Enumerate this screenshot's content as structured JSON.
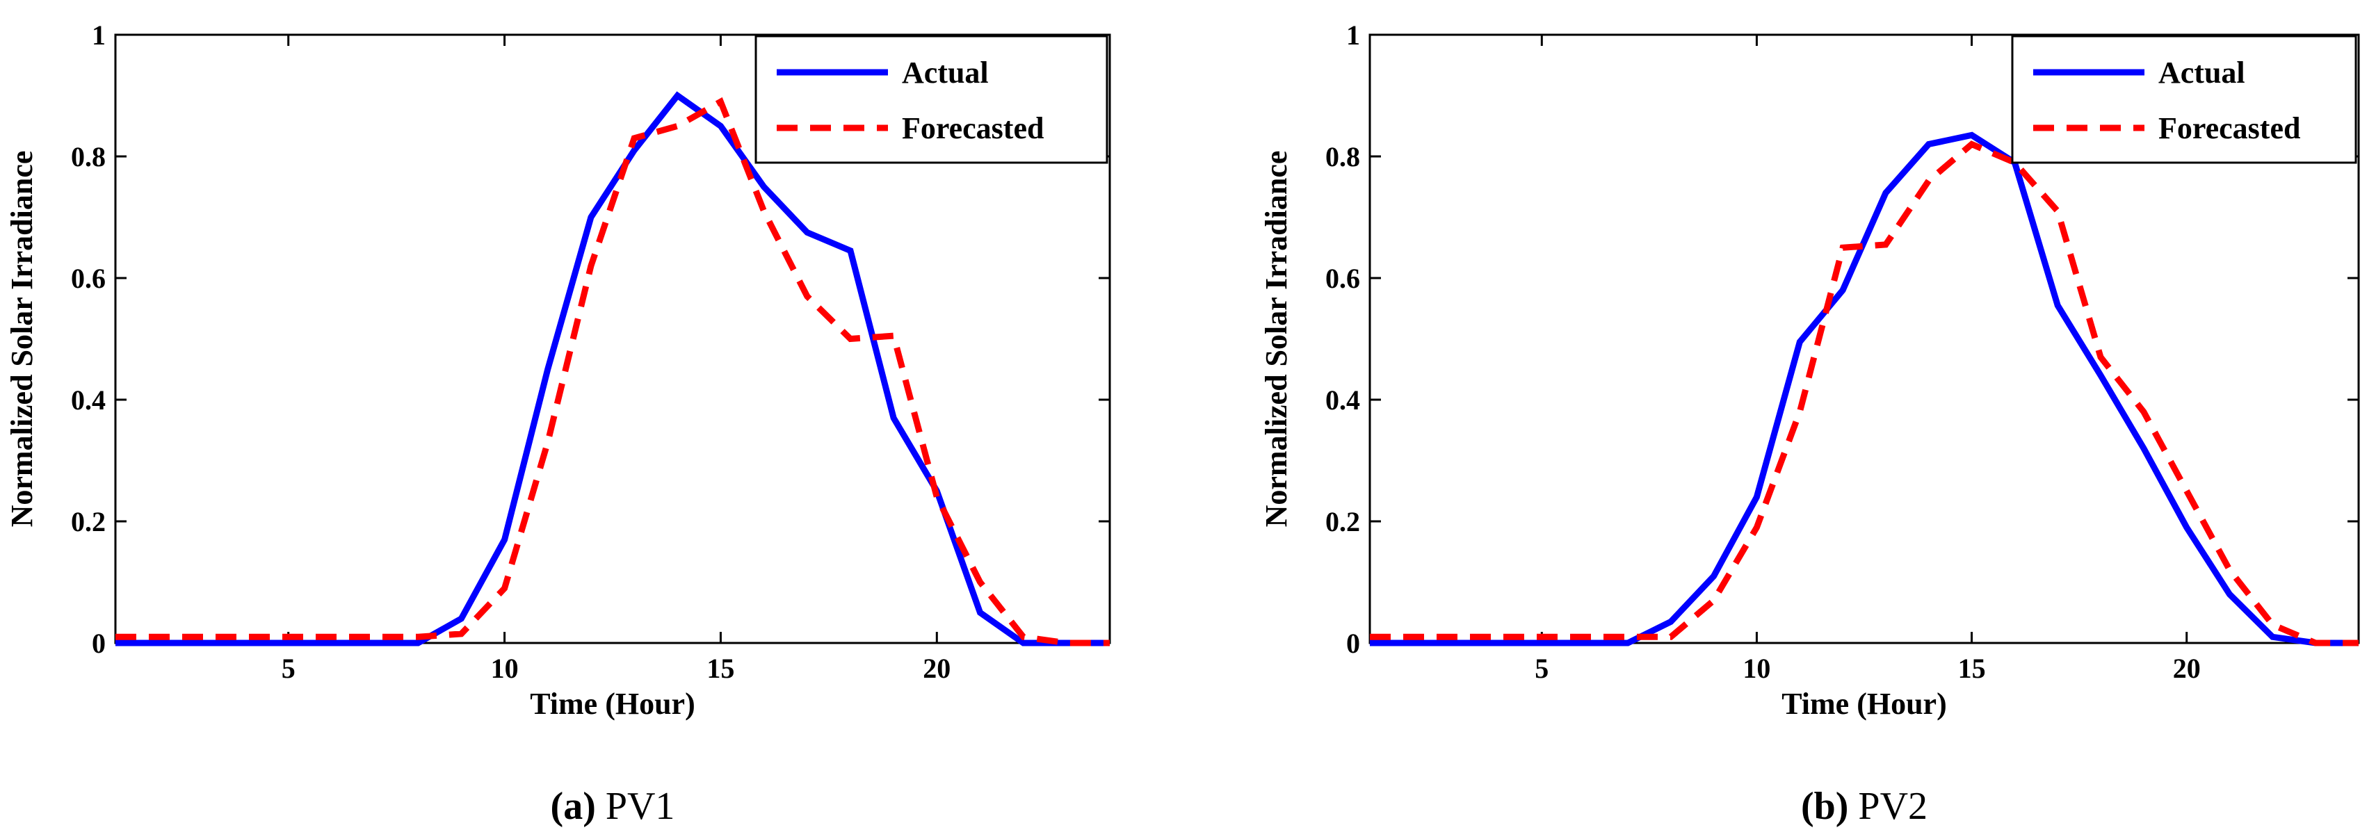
{
  "chart_data": [
    {
      "type": "line",
      "title": "",
      "caption_tag": "(a)",
      "caption_text": "PV1",
      "xlabel": "Time (Hour)",
      "ylabel": "Normalized Solar Irradiance",
      "xlim": [
        1,
        24
      ],
      "ylim": [
        0,
        1
      ],
      "xticks": [
        5,
        10,
        15,
        20
      ],
      "yticks": [
        0,
        0.2,
        0.4,
        0.6,
        0.8,
        1
      ],
      "ytick_labels": [
        "0",
        "0.2",
        "0.4",
        "0.6",
        "0.8",
        "1"
      ],
      "legend_position": "top-right",
      "x": [
        1,
        2,
        3,
        4,
        5,
        6,
        7,
        8,
        9,
        10,
        11,
        12,
        13,
        14,
        15,
        16,
        17,
        18,
        19,
        20,
        21,
        22,
        23,
        24
      ],
      "series": [
        {
          "name": "Actual",
          "color": "#0000ff",
          "style": "solid",
          "values": [
            0,
            0,
            0,
            0,
            0,
            0,
            0,
            0,
            0.04,
            0.17,
            0.45,
            0.7,
            0.81,
            0.9,
            0.85,
            0.75,
            0.675,
            0.645,
            0.37,
            0.25,
            0.05,
            0,
            0,
            0
          ]
        },
        {
          "name": "Forecasted",
          "color": "#ff0000",
          "style": "dashed",
          "values": [
            0.01,
            0.01,
            0.01,
            0.01,
            0.01,
            0.01,
            0.01,
            0.01,
            0.015,
            0.09,
            0.33,
            0.62,
            0.83,
            0.85,
            0.89,
            0.71,
            0.57,
            0.5,
            0.505,
            0.24,
            0.1,
            0.01,
            0,
            0
          ]
        }
      ]
    },
    {
      "type": "line",
      "title": "",
      "caption_tag": "(b)",
      "caption_text": "PV2",
      "xlabel": "Time (Hour)",
      "ylabel": "Normalized Solar Irradiance",
      "xlim": [
        1,
        24
      ],
      "ylim": [
        0,
        1
      ],
      "xticks": [
        5,
        10,
        15,
        20
      ],
      "yticks": [
        0,
        0.2,
        0.4,
        0.6,
        0.8,
        1
      ],
      "ytick_labels": [
        "0",
        "0.2",
        "0.4",
        "0.6",
        "0.8",
        "1"
      ],
      "legend_position": "top-right",
      "x": [
        1,
        2,
        3,
        4,
        5,
        6,
        7,
        8,
        9,
        10,
        11,
        12,
        13,
        14,
        15,
        16,
        17,
        18,
        19,
        20,
        21,
        22,
        23,
        24
      ],
      "series": [
        {
          "name": "Actual",
          "color": "#0000ff",
          "style": "solid",
          "values": [
            0,
            0,
            0,
            0,
            0,
            0,
            0,
            0.035,
            0.11,
            0.24,
            0.495,
            0.58,
            0.74,
            0.82,
            0.835,
            0.79,
            0.555,
            0.44,
            0.32,
            0.19,
            0.08,
            0.01,
            0,
            0
          ]
        },
        {
          "name": "Forecasted",
          "color": "#ff0000",
          "style": "dashed",
          "values": [
            0.01,
            0.01,
            0.01,
            0.01,
            0.01,
            0.01,
            0.01,
            0.01,
            0.07,
            0.19,
            0.38,
            0.65,
            0.655,
            0.76,
            0.82,
            0.79,
            0.71,
            0.47,
            0.38,
            0.25,
            0.12,
            0.03,
            0,
            0
          ]
        }
      ]
    }
  ]
}
